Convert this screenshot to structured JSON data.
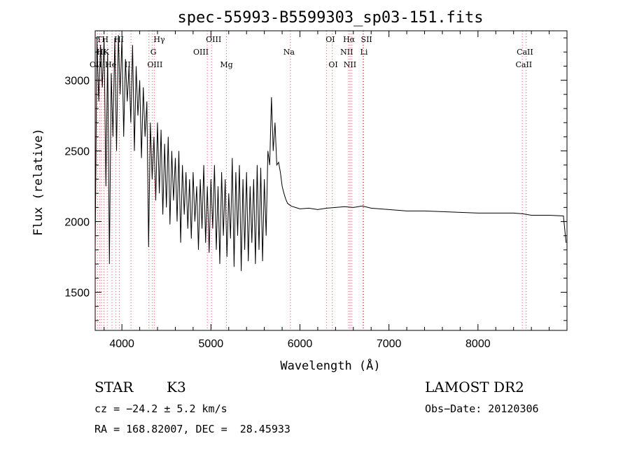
{
  "chart_data": {
    "type": "line",
    "title": "spec-55993-B5599303_sp03-151.fits",
    "xlabel": "Wavelength (Å)",
    "ylabel": "Flux (relative)",
    "xlim": [
      3700,
      9000
    ],
    "ylim": [
      1230,
      3350
    ],
    "xticks": [
      4000,
      5000,
      6000,
      7000,
      8000
    ],
    "yticks": [
      1500,
      2000,
      2500,
      3000
    ],
    "grid": false,
    "legend": "none",
    "series": [
      {
        "x": [
          3700,
          3720,
          3740,
          3760,
          3780,
          3800,
          3820,
          3840,
          3860,
          3880,
          3900,
          3920,
          3940,
          3960,
          3980,
          4000,
          4020,
          4040,
          4060,
          4080,
          4100,
          4120,
          4140,
          4160,
          4180,
          4200,
          4220,
          4240,
          4260,
          4280,
          4300,
          4320,
          4340,
          4360,
          4380,
          4400,
          4420,
          4440,
          4460,
          4480,
          4500,
          4520,
          4540,
          4560,
          4580,
          4600,
          4620,
          4640,
          4660,
          4680,
          4700,
          4720,
          4740,
          4760,
          4780,
          4800,
          4820,
          4840,
          4860,
          4880,
          4900,
          4920,
          4940,
          4960,
          4980,
          5000,
          5020,
          5040,
          5060,
          5080,
          5100,
          5120,
          5140,
          5160,
          5180,
          5200,
          5220,
          5240,
          5260,
          5280,
          5300,
          5320,
          5340,
          5360,
          5380,
          5400,
          5420,
          5440,
          5460,
          5480,
          5500,
          5520,
          5540,
          5560,
          5580,
          5600,
          5620,
          5640,
          5660,
          5680,
          5700,
          5720,
          5740,
          5760,
          5780,
          5800,
          5820,
          5840,
          5860,
          5880,
          5900,
          5950,
          6000,
          6100,
          6200,
          6300,
          6400,
          6500,
          6600,
          6700,
          6800,
          6900,
          7000,
          7200,
          7400,
          7600,
          7800,
          8000,
          8200,
          8400,
          8500,
          8600,
          8800,
          8960,
          8990
        ],
        "y": [
          1820,
          3300,
          2850,
          3250,
          2950,
          3300,
          2250,
          3200,
          1700,
          3050,
          2600,
          3300,
          2500,
          3320,
          2900,
          3300,
          2600,
          3150,
          2850,
          3100,
          2700,
          3250,
          2500,
          3100,
          2750,
          3000,
          2450,
          2950,
          2600,
          2850,
          1820,
          2700,
          2300,
          2600,
          2150,
          2700,
          2200,
          2650,
          2050,
          2550,
          2100,
          2600,
          1980,
          2500,
          2150,
          2450,
          2000,
          2500,
          1850,
          2400,
          2050,
          2350,
          1950,
          2300,
          1880,
          2350,
          2000,
          2250,
          1800,
          2300,
          1950,
          2400,
          1850,
          2250,
          1780,
          2300,
          1950,
          2400,
          1800,
          2250,
          1700,
          2350,
          1900,
          2300,
          1750,
          2200,
          1880,
          2450,
          1680,
          2350,
          1900,
          2400,
          1650,
          2300,
          1800,
          2350,
          1720,
          2250,
          1850,
          2300,
          1700,
          2400,
          1800,
          2380,
          1720,
          2300,
          1900,
          2500,
          2400,
          2880,
          2500,
          2700,
          2400,
          2420,
          2350,
          2250,
          2200,
          2160,
          2130,
          2120,
          2110,
          2100,
          2090,
          2095,
          2085,
          2095,
          2100,
          2105,
          2100,
          2110,
          2095,
          2090,
          2085,
          2075,
          2075,
          2070,
          2065,
          2060,
          2060,
          2060,
          2055,
          2045,
          2045,
          2040,
          1850
        ]
      }
    ],
    "annotations": {
      "lines": [
        {
          "label": "Hγ",
          "x": 4340
        },
        {
          "label": "G",
          "x": 4304
        },
        {
          "label": "OIII",
          "x": 4363
        },
        {
          "label": "OIII",
          "x": 4959
        },
        {
          "label": "OIII",
          "x": 5007
        },
        {
          "label": "Mg",
          "x": 5175
        },
        {
          "label": "Na",
          "x": 5893
        },
        {
          "label": "OI",
          "x": 6300
        },
        {
          "label": "OI",
          "x": 6364
        },
        {
          "label": "Hα",
          "x": 6563
        },
        {
          "label": "NII",
          "x": 6548
        },
        {
          "label": "NII",
          "x": 6584
        },
        {
          "label": "SII",
          "x": 6716
        },
        {
          "label": "Li",
          "x": 6708
        },
        {
          "label": "CaII",
          "x": 8542
        },
        {
          "label": "CaII",
          "x": 8498
        }
      ],
      "crowded_labels": [
        "TH",
        "HK",
        "OII",
        "He",
        "HI",
        "II"
      ]
    }
  },
  "info": {
    "object_class": "STAR",
    "subclass": "K3",
    "survey": "LAMOST DR2",
    "cz": "cz = −24.2 ± 5.2 km/s",
    "obs_date": "Obs−Date: 20120306",
    "coords": "RA = 168.82007, DEC =  28.45933"
  }
}
